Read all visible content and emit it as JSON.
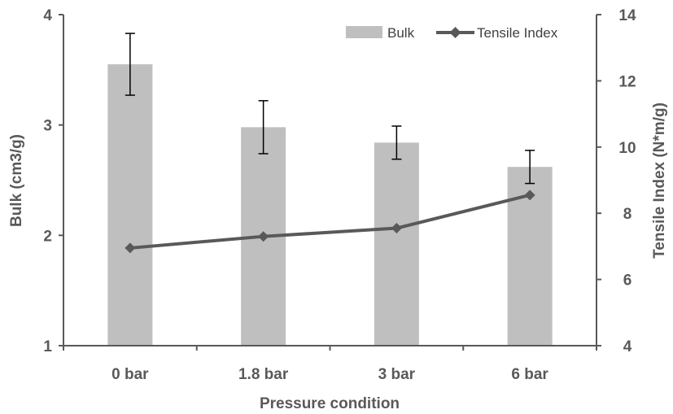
{
  "chart_data": {
    "type": "bar+line",
    "categories": [
      "0 bar",
      "1.8 bar",
      "3 bar",
      "6 bar"
    ],
    "series": [
      {
        "name": "Bulk",
        "type": "bar",
        "axis": "left",
        "values": [
          3.55,
          2.98,
          2.84,
          2.62
        ],
        "error": [
          0.28,
          0.24,
          0.15,
          0.15
        ],
        "color": "#bfbfbf"
      },
      {
        "name": "Tensile Index",
        "type": "line",
        "axis": "right",
        "values": [
          6.95,
          7.3,
          7.55,
          8.55
        ],
        "color": "#595959",
        "marker": "diamond"
      }
    ],
    "xlabel": "Pressure condition",
    "ylabel_left": "Bulk (cm3/g)",
    "ylabel_right": "Tensile Index (N*m/g)",
    "ylim_left": [
      1,
      4
    ],
    "yticks_left": [
      "1",
      "2",
      "3",
      "4"
    ],
    "ylim_right": [
      4,
      14
    ],
    "yticks_right": [
      "4",
      "6",
      "8",
      "10",
      "12",
      "14"
    ],
    "legend_position": "top-right",
    "grid": false
  }
}
